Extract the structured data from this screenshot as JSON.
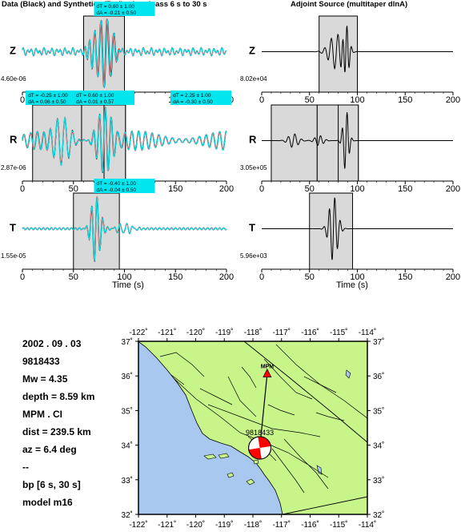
{
  "left_title": "Data (Black) and Synthetics (Red) -- bandpass 6 s to 30 s",
  "right_title": "Adjoint Source (multitaper dlnA)",
  "x_axis_label": "Time (s)",
  "colors": {
    "data": "#000000",
    "synth": "#ff0000",
    "cyan": "#00e5ee",
    "window": "#d9d9d9",
    "land": "#c8f58a",
    "water": "#a8c8f0",
    "beachball": "#ff0000",
    "station": "#ff0000"
  },
  "chart_data": [
    {
      "type": "line",
      "panel": "seismogram",
      "component": "Z",
      "amp_label": "4.60e-06",
      "xlim": [
        0,
        200
      ],
      "xticks": [
        0,
        50,
        100,
        150,
        200
      ],
      "windows": [
        [
          60,
          100
        ]
      ],
      "labels": [
        {
          "t": 100,
          "text": "dT = 0.60 ± 1.00"
        },
        {
          "t": 100,
          "text": "dA = -0.21 ± 0.50"
        }
      ]
    },
    {
      "type": "line",
      "panel": "adjoint",
      "component": "Z",
      "amp_label": "8.02e+04",
      "xlim": [
        0,
        200
      ],
      "xticks": [
        0,
        50,
        100,
        150,
        200
      ],
      "windows": [
        [
          60,
          100
        ]
      ]
    },
    {
      "type": "line",
      "panel": "seismogram",
      "component": "R",
      "amp_label": "2.87e-06",
      "xlim": [
        0,
        200
      ],
      "xticks": [
        0,
        50,
        100,
        150,
        200
      ],
      "windows": [
        [
          10,
          58
        ],
        [
          58,
          101
        ],
        [
          80,
          101
        ]
      ],
      "labels": [
        {
          "t": 33,
          "text": "dT = -0.25 ± 1.00"
        },
        {
          "t": 33,
          "text": "dA = 0.06 ± 0.50"
        },
        {
          "t": 80,
          "text": "dT = 0.60 ± 1.00"
        },
        {
          "t": 80,
          "text": "dA = 0.01 ± 0.57"
        },
        {
          "t": 175,
          "text": "dT = 2.25 ± 1.00"
        },
        {
          "t": 175,
          "text": "dA = -0.30 ± 0.50"
        }
      ]
    },
    {
      "type": "line",
      "panel": "adjoint",
      "component": "R",
      "amp_label": "3.05e+05",
      "xlim": [
        0,
        200
      ],
      "xticks": [
        0,
        50,
        100,
        150,
        200
      ],
      "windows": [
        [
          10,
          58
        ],
        [
          58,
          101
        ],
        [
          80,
          101
        ]
      ]
    },
    {
      "type": "line",
      "panel": "seismogram",
      "component": "T",
      "amp_label": "1.55e-05",
      "xlim": [
        0,
        200
      ],
      "xticks": [
        0,
        50,
        100,
        150,
        200
      ],
      "windows": [
        [
          50,
          95
        ]
      ],
      "labels": [
        {
          "t": 100,
          "text": "dT = -0.40 ± 1.00"
        },
        {
          "t": 100,
          "text": "dA = -0.04 ± 0.50"
        }
      ]
    },
    {
      "type": "line",
      "panel": "adjoint",
      "component": "T",
      "amp_label": "5.96e+03",
      "xlim": [
        0,
        200
      ],
      "xticks": [
        0,
        50,
        100,
        150,
        200
      ],
      "windows": [
        [
          50,
          95
        ]
      ]
    }
  ],
  "event_info": [
    "2002 . 09 . 03",
    "9818433",
    "Mw = 4.35",
    "depth = 8.59 km",
    "MPM . CI",
    "dist = 239.5 km",
    "az = 6.4 deg",
    "--",
    "bp [6 s, 30 s]",
    "model m16"
  ],
  "map": {
    "lon_range": [
      -122,
      -114
    ],
    "lat_range": [
      32,
      37
    ],
    "lon_ticks": [
      "-122˚",
      "-121˚",
      "-120˚",
      "-119˚",
      "-118˚",
      "-117˚",
      "-116˚",
      "-115˚",
      "-114˚"
    ],
    "lat_ticks": [
      "37˚",
      "36˚",
      "35˚",
      "34˚",
      "33˚",
      "32˚"
    ],
    "station": {
      "name": "MPM",
      "lon": -117.5,
      "lat": 36.06
    },
    "event": {
      "name": "9818433",
      "lon": -117.76,
      "lat": 33.92
    }
  }
}
